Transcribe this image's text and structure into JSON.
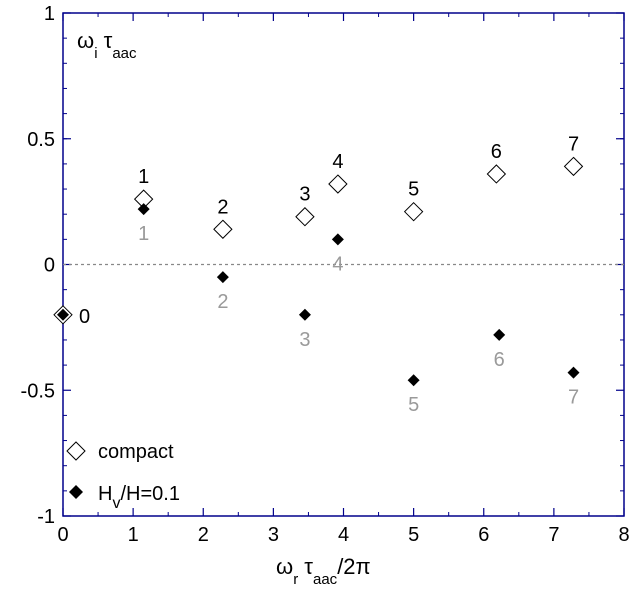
{
  "chart_data": {
    "type": "scatter",
    "xlim": [
      0,
      8
    ],
    "ylim": [
      -1,
      1
    ],
    "xticks": [
      "0",
      "1",
      "2",
      "3",
      "4",
      "5",
      "6",
      "7",
      "8"
    ],
    "yticks": [
      "1",
      "0.5",
      "0",
      "-0.5",
      "-1"
    ],
    "xlabel": {
      "base": "ω",
      "sub": "r",
      "mid": " τ",
      "sub2": "aac",
      "tail": "/2π"
    },
    "ylabel": {
      "base": "ω",
      "sub": "i",
      "mid": " τ",
      "sub2": "aac"
    },
    "zero_line": true,
    "series": [
      {
        "name": "compact",
        "marker": "open-diamond",
        "label_color": "#000000",
        "points": [
          {
            "x": 0.0,
            "y": -0.2,
            "label": "0"
          },
          {
            "x": 1.15,
            "y": 0.26,
            "label": "1"
          },
          {
            "x": 2.28,
            "y": 0.14,
            "label": "2"
          },
          {
            "x": 3.45,
            "y": 0.19,
            "label": "3"
          },
          {
            "x": 3.92,
            "y": 0.32,
            "label": "4"
          },
          {
            "x": 5.0,
            "y": 0.21,
            "label": "5"
          },
          {
            "x": 6.18,
            "y": 0.36,
            "label": "6"
          },
          {
            "x": 7.28,
            "y": 0.39,
            "label": "7"
          }
        ]
      },
      {
        "name": "Hv/H=0.1",
        "name_parts": {
          "a": "H",
          "sub": "v",
          "b": "/H=0.1"
        },
        "marker": "filled-diamond",
        "label_color": "#9a9a9a",
        "points": [
          {
            "x": 0.0,
            "y": -0.2,
            "label": ""
          },
          {
            "x": 1.15,
            "y": 0.22,
            "label": "1"
          },
          {
            "x": 2.28,
            "y": -0.05,
            "label": "2"
          },
          {
            "x": 3.45,
            "y": -0.2,
            "label": "3"
          },
          {
            "x": 3.92,
            "y": 0.1,
            "label": "4"
          },
          {
            "x": 5.0,
            "y": -0.46,
            "label": "5"
          },
          {
            "x": 6.22,
            "y": -0.28,
            "label": "6"
          },
          {
            "x": 7.28,
            "y": -0.43,
            "label": "7"
          }
        ]
      }
    ],
    "legend": {
      "placement": "bottom-left"
    }
  }
}
